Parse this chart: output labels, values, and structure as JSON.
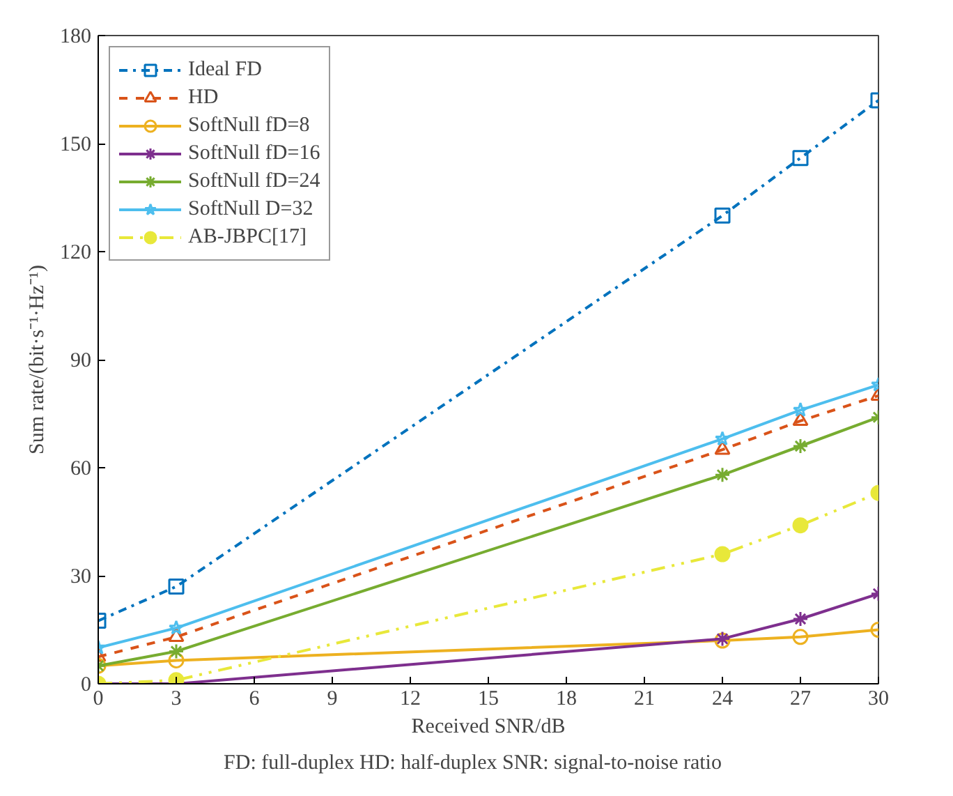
{
  "chart_data": {
    "type": "line",
    "xlabel": "Received SNR/dB",
    "ylabel": "Sum rate/(bit·s⁻¹·Hz⁻¹)",
    "x": [
      0,
      3,
      24,
      27,
      30
    ],
    "xlim": [
      0,
      30
    ],
    "xticks": [
      0,
      3,
      6,
      9,
      12,
      15,
      18,
      21,
      24,
      27,
      30
    ],
    "ylim": [
      0,
      180
    ],
    "yticks": [
      0,
      30,
      60,
      90,
      120,
      150,
      180
    ],
    "grid": false,
    "legend": "top left",
    "series": [
      {
        "name": "Ideal FD",
        "color": "#0072bd",
        "marker": "square",
        "line_style": "dashdot",
        "values": [
          17.5,
          27,
          130,
          146,
          162
        ]
      },
      {
        "name": "HD",
        "color": "#d95319",
        "marker": "triangle",
        "line_style": "dashed",
        "values": [
          7.5,
          13,
          65,
          73,
          80
        ]
      },
      {
        "name": "SoftNull fD=8",
        "color": "#edb120",
        "marker": "circle",
        "line_style": "solid",
        "values": [
          5,
          6.5,
          12,
          13,
          15
        ]
      },
      {
        "name": "SoftNull fD=16",
        "color": "#7e2f8e",
        "marker": "cross",
        "line_style": "solid",
        "values": [
          0,
          0,
          12.5,
          18,
          25
        ]
      },
      {
        "name": "SoftNull fD=24",
        "color": "#77ac30",
        "marker": "cross",
        "line_style": "solid",
        "values": [
          5,
          9,
          58,
          66,
          74
        ]
      },
      {
        "name": "SoftNull D=32",
        "color": "#4dbeee",
        "marker": "star",
        "line_style": "solid",
        "values": [
          10,
          15.5,
          68,
          76,
          83
        ]
      },
      {
        "name": "AB-JBPC[17]",
        "color": "#e8e83a",
        "marker": "circle_filled",
        "line_style": "dashdotdot",
        "values": [
          0,
          1,
          36,
          44,
          53
        ]
      }
    ],
    "annotations": [
      "FD: full-duplex    HD: half-duplex    SNR: signal-to-noise ratio"
    ]
  }
}
